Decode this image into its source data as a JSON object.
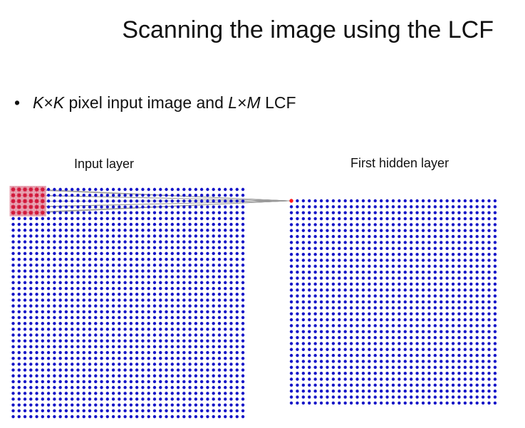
{
  "slide": {
    "title": "Scanning the image using the LCF",
    "bullet": {
      "marker": "•",
      "parts": [
        {
          "text": "K",
          "italic": true
        },
        {
          "text": "×",
          "italic": false
        },
        {
          "text": "K",
          "italic": true
        },
        {
          "text": " pixel input image and ",
          "italic": false
        },
        {
          "text": "L",
          "italic": true
        },
        {
          "text": "×",
          "italic": false
        },
        {
          "text": "M",
          "italic": true
        },
        {
          "text": " LCF",
          "italic": false
        }
      ]
    }
  },
  "diagram": {
    "input_layer_label": "Input layer",
    "hidden_layer_label": "First hidden layer",
    "input_grid": {
      "rows": 40,
      "cols": 40
    },
    "hidden_grid": {
      "rows": 35,
      "cols": 35
    },
    "filter_window": {
      "rows": 5,
      "cols": 6,
      "start_row": 0,
      "start_col": 0
    },
    "active_hidden_unit": {
      "row": 0,
      "col": 0
    },
    "colors": {
      "neuron": "#1515c8",
      "filter_unit": "#d2193c",
      "filter_highlight": "#e7a3b2",
      "active_unit": "#ff1a1a",
      "connection": "#9a9a9a"
    }
  }
}
